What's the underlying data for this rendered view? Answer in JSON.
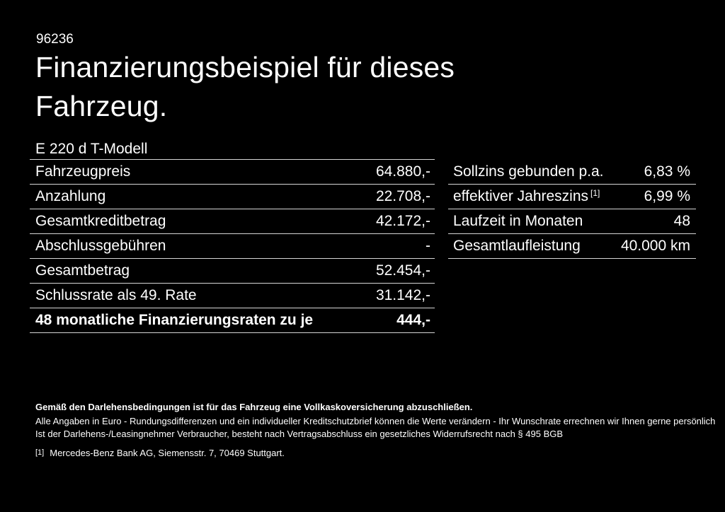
{
  "page": {
    "background": "#000000",
    "text_color": "#ffffff",
    "divider_color": "#d6d6d6"
  },
  "header": {
    "ref_number": "96236",
    "title_line1": "Finanzierungsbeispiel für dieses",
    "title_line2": "Fahrzeug.",
    "vehicle_model": "E 220 d T-Modell"
  },
  "finance_table": {
    "rows": [
      {
        "label": "Fahrzeugpreis",
        "value": "64.880,-"
      },
      {
        "label": "Anzahlung",
        "value": "22.708,-"
      },
      {
        "label": "Gesamtkreditbetrag",
        "value": "42.172,-"
      },
      {
        "label": "Abschlussgebühren",
        "value": "-"
      },
      {
        "label": "Gesamtbetrag",
        "value": "52.454,-"
      },
      {
        "label": "Schlussrate als 49. Rate",
        "value": "31.142,-"
      },
      {
        "label": "48 monatliche Finanzierungsraten zu je",
        "value": "444,-"
      }
    ]
  },
  "conditions_table": {
    "rows": [
      {
        "label": "Sollzins gebunden p.a.",
        "sup": "",
        "value": "6,83 %"
      },
      {
        "label": "effektiver Jahreszins",
        "sup": "[1]",
        "value": "6,99 %"
      },
      {
        "label": "Laufzeit in Monaten",
        "sup": "",
        "value": "48"
      },
      {
        "label": "Gesamtlaufleistung",
        "sup": "",
        "value": "40.000 km"
      }
    ]
  },
  "disclaimer": {
    "insurance_note": "Gemäß den Darlehensbedingungen ist für das Fahrzeug eine Vollkaskoversicherung abzuschließen.",
    "note_line1": "Alle Angaben in Euro - Rundungsdifferenzen und ein individueller Kreditschutzbrief können die Werte verändern - Ihr Wunschrate errechnen wir Ihnen gerne persönlich",
    "note_line2": "Ist der Darlehens-/Leasingnehmer Verbraucher, besteht nach Vertragsabschluss ein gesetzliches Widerrufsrecht nach § 495 BGB",
    "footnote_marker": "[1]",
    "footnote_text": "Mercedes-Benz Bank AG, Siemensstr. 7, 70469 Stuttgart."
  }
}
